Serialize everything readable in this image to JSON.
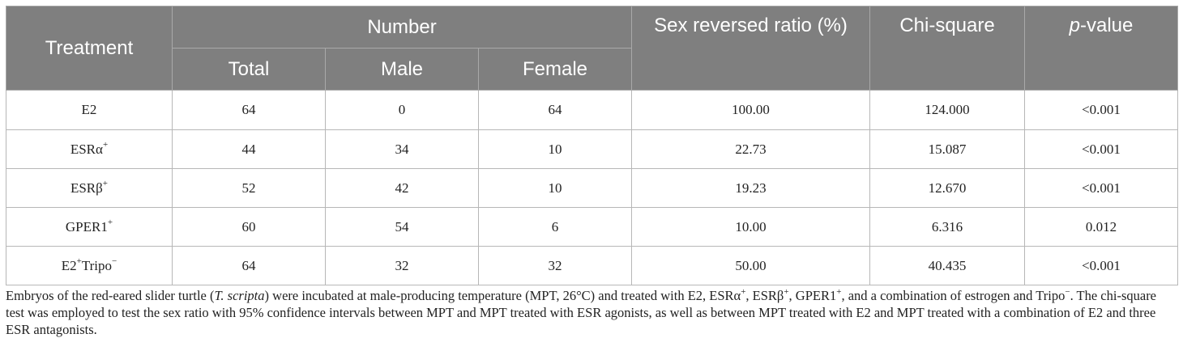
{
  "table": {
    "headers": {
      "treatment": "Treatment",
      "number": "Number",
      "total": "Total",
      "male": "Male",
      "female": "Female",
      "sex_reversed_ratio": "Sex reversed ratio (%)",
      "chi_square": "Chi-square",
      "p_value_italic": "p",
      "p_value_rest": "-value"
    },
    "rows": [
      {
        "base": "E2",
        "sup": "",
        "tail": "",
        "tail_sup": "",
        "total": "64",
        "male": "0",
        "female": "64",
        "ratio": "100.00",
        "chi": "124.000",
        "p": "<0.001"
      },
      {
        "base": "ESRα",
        "sup": "+",
        "tail": "",
        "tail_sup": "",
        "total": "44",
        "male": "34",
        "female": "10",
        "ratio": "22.73",
        "chi": "15.087",
        "p": "<0.001"
      },
      {
        "base": "ESRβ",
        "sup": "+",
        "tail": "",
        "tail_sup": "",
        "total": "52",
        "male": "42",
        "female": "10",
        "ratio": "19.23",
        "chi": "12.670",
        "p": "<0.001"
      },
      {
        "base": "GPER1",
        "sup": "+",
        "tail": "",
        "tail_sup": "",
        "total": "60",
        "male": "54",
        "female": "6",
        "ratio": "10.00",
        "chi": "6.316",
        "p": "0.012"
      },
      {
        "base": "E2",
        "sup": "+",
        "tail": "Tripo",
        "tail_sup": "−",
        "total": "64",
        "male": "32",
        "female": "32",
        "ratio": "50.00",
        "chi": "40.435",
        "p": "<0.001"
      }
    ]
  },
  "footnote": {
    "part1": "Embryos of the red-eared slider turtle (",
    "species": "T. scripta",
    "part2": ") were incubated at male-producing temperature (MPT, 26°C) and treated with E2, ESRα",
    "sup1": "+",
    "part3": ", ESRβ",
    "sup2": "+",
    "part4": ", GPER1",
    "sup3": "+",
    "part5": ", and a combination of estrogen and Tripo",
    "sup4": "−",
    "part6": ". The chi-square test was employed to test the sex ratio with 95% confidence intervals between MPT and MPT treated with ESR agonists, as well as between MPT treated with E2 and MPT treated with a combination of E2 and three ESR antagonists."
  }
}
